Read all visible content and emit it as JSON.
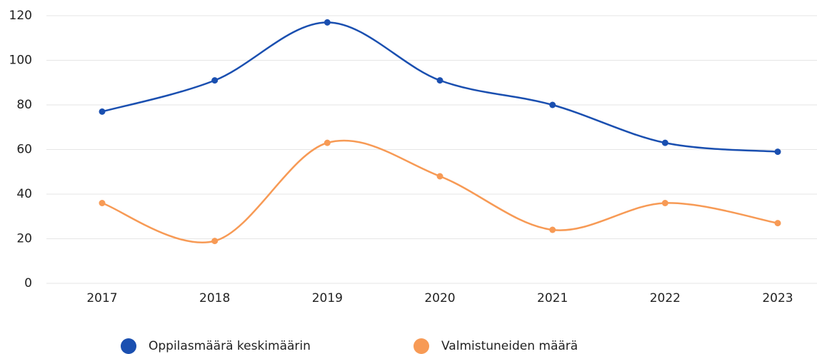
{
  "chart_data": {
    "type": "line",
    "categories": [
      "2017",
      "2018",
      "2019",
      "2020",
      "2021",
      "2022",
      "2023"
    ],
    "series": [
      {
        "name": "Oppilasmäärä keskimäärin",
        "color": "#1a4fb0",
        "values": [
          77,
          91,
          117,
          91,
          80,
          63,
          59
        ]
      },
      {
        "name": "Valmistuneiden määrä",
        "color": "#f79a55",
        "values": [
          36,
          19,
          63,
          48,
          24,
          36,
          27
        ]
      }
    ],
    "ylim": [
      0,
      120
    ],
    "yticks": [
      0,
      20,
      40,
      60,
      80,
      100,
      120
    ],
    "grid": true,
    "smooth": true,
    "legend": "bottom"
  }
}
